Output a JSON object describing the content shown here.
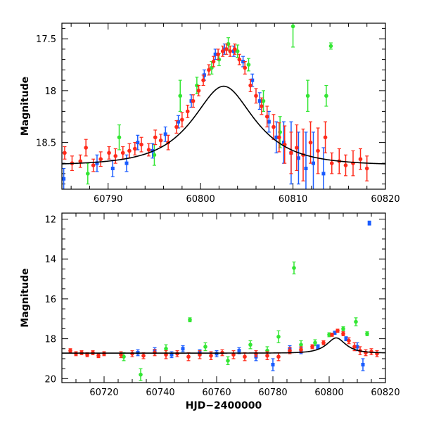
{
  "chart_data": [
    {
      "type": "scatter",
      "title": "",
      "xlabel": "",
      "ylabel": "Magnitude",
      "xlim": [
        60785,
        60820
      ],
      "ylim": [
        18.95,
        17.35
      ],
      "y_inverted": true,
      "xticks": [
        60790,
        60800,
        60810,
        60820
      ],
      "yticks": [
        17.5,
        18,
        18.5
      ],
      "ytick_labels": [
        "17.5",
        "18",
        "18.5"
      ],
      "grid": false,
      "legend": "none",
      "series": [
        {
          "color": "#ff2a1a",
          "marker": "circle-errorbar",
          "x": [
            60785.3,
            60786.1,
            60787.0,
            60787.6,
            60788.4,
            60789.2,
            60790.1,
            60790.8,
            60791.6,
            60792.3,
            60792.9,
            60793.6,
            60794.4,
            60795.1,
            60795.7,
            60796.5,
            60797.4,
            60798.0,
            60798.6,
            60799.2,
            60799.8,
            60800.3,
            60800.9,
            60801.4,
            60801.9,
            60802.4,
            60802.8,
            60803.2,
            60803.7,
            60804.2,
            60804.8,
            60805.4,
            60806.0,
            60806.6,
            60807.2,
            60807.9,
            60808.5,
            60809.1,
            60809.8,
            60810.4,
            60811.1,
            60811.9,
            60812.7,
            60813.5,
            60814.2,
            60815.0,
            60815.7,
            60816.5,
            60817.3,
            60818.0
          ],
          "y": [
            18.6,
            18.7,
            18.68,
            18.55,
            18.72,
            18.66,
            18.6,
            18.63,
            18.6,
            18.58,
            18.56,
            18.52,
            18.57,
            18.45,
            18.48,
            18.5,
            18.35,
            18.28,
            18.2,
            18.1,
            18.0,
            17.9,
            17.8,
            17.72,
            17.65,
            17.62,
            17.6,
            17.62,
            17.6,
            17.7,
            17.78,
            17.95,
            18.05,
            18.15,
            18.25,
            18.35,
            18.45,
            18.52,
            18.6,
            18.55,
            18.62,
            18.5,
            18.58,
            18.45,
            18.7,
            18.68,
            18.72,
            18.7,
            18.66,
            18.75
          ],
          "err": [
            0.06,
            0.07,
            0.06,
            0.08,
            0.06,
            0.07,
            0.06,
            0.07,
            0.06,
            0.07,
            0.06,
            0.07,
            0.06,
            0.07,
            0.06,
            0.07,
            0.06,
            0.07,
            0.06,
            0.06,
            0.05,
            0.05,
            0.05,
            0.05,
            0.05,
            0.05,
            0.05,
            0.05,
            0.05,
            0.05,
            0.06,
            0.06,
            0.07,
            0.08,
            0.1,
            0.12,
            0.14,
            0.18,
            0.2,
            0.22,
            0.25,
            0.2,
            0.22,
            0.15,
            0.1,
            0.12,
            0.1,
            0.12,
            0.1,
            0.12
          ]
        },
        {
          "color": "#1a5cff",
          "marker": "square-errorbar",
          "x": [
            60785.2,
            60788.8,
            60790.5,
            60792.0,
            60793.2,
            60794.8,
            60796.2,
            60797.6,
            60799.0,
            60800.4,
            60801.6,
            60802.6,
            60803.6,
            60804.6,
            60805.6,
            60806.4,
            60807.4,
            60808.2,
            60809.0,
            60809.8,
            60810.6,
            60811.4,
            60812.2,
            60813.3
          ],
          "y": [
            18.85,
            18.7,
            18.75,
            18.7,
            18.5,
            18.58,
            18.42,
            18.3,
            18.1,
            17.85,
            17.65,
            17.6,
            17.62,
            17.72,
            17.9,
            18.1,
            18.3,
            18.45,
            18.5,
            18.6,
            18.65,
            18.75,
            18.7,
            18.8
          ],
          "err": [
            0.1,
            0.08,
            0.08,
            0.08,
            0.07,
            0.07,
            0.07,
            0.06,
            0.06,
            0.05,
            0.05,
            0.05,
            0.05,
            0.05,
            0.06,
            0.08,
            0.1,
            0.15,
            0.2,
            0.3,
            0.25,
            0.35,
            0.3,
            0.25
          ]
        },
        {
          "color": "#33e633",
          "marker": "circle-errorbar",
          "x": [
            60787.8,
            60791.2,
            60795.0,
            60797.8,
            60799.6,
            60801.2,
            60802.0,
            60803.0,
            60804.0,
            60805.2,
            60806.8,
            60808.6,
            60810.0,
            60811.6,
            60813.6,
            60814.1
          ],
          "y": [
            18.8,
            18.45,
            18.62,
            18.05,
            17.95,
            17.78,
            17.7,
            17.55,
            17.62,
            17.75,
            18.1,
            18.4,
            17.38,
            18.05,
            18.05,
            17.57
          ],
          "err": [
            0.1,
            0.12,
            0.1,
            0.15,
            0.08,
            0.06,
            0.06,
            0.06,
            0.06,
            0.06,
            0.1,
            0.15,
            0.2,
            0.15,
            0.1,
            0.03
          ]
        }
      ],
      "model_curve": "single-lens microlensing fit (black line)"
    },
    {
      "type": "scatter",
      "title": "",
      "xlabel": "HJD−2400000",
      "ylabel": "Magnitude",
      "xlim": [
        60705,
        60820
      ],
      "ylim": [
        20.2,
        11.7
      ],
      "y_inverted": true,
      "xticks": [
        60720,
        60740,
        60760,
        60780,
        60800,
        60820
      ],
      "yticks": [
        12,
        14,
        16,
        18,
        20
      ],
      "grid": false,
      "legend": "none",
      "series": [
        {
          "color": "#ff2a1a",
          "marker": "circle-errorbar",
          "x": [
            60708,
            60710,
            60712,
            60714,
            60716,
            60718,
            60720,
            60726,
            60730,
            60734,
            60738,
            60742,
            60746,
            60750,
            60754,
            60758,
            60762,
            60766,
            60770,
            60774,
            60778,
            60782,
            60786,
            60790,
            60794,
            60798,
            60801,
            60803,
            60805,
            60807,
            60809,
            60811,
            60813,
            60815,
            60817
          ],
          "y": [
            18.6,
            18.75,
            18.7,
            18.8,
            18.7,
            18.85,
            18.75,
            18.8,
            18.75,
            18.85,
            18.7,
            18.8,
            18.75,
            18.9,
            18.8,
            18.85,
            18.7,
            18.8,
            18.9,
            18.75,
            18.85,
            18.9,
            18.6,
            18.55,
            18.4,
            18.2,
            17.8,
            17.6,
            17.75,
            18.1,
            18.4,
            18.6,
            18.7,
            18.65,
            18.75
          ],
          "err": [
            0.1,
            0.1,
            0.1,
            0.1,
            0.1,
            0.1,
            0.1,
            0.15,
            0.15,
            0.15,
            0.15,
            0.2,
            0.15,
            0.2,
            0.2,
            0.2,
            0.15,
            0.2,
            0.2,
            0.15,
            0.2,
            0.2,
            0.15,
            0.15,
            0.1,
            0.1,
            0.08,
            0.08,
            0.1,
            0.15,
            0.2,
            0.2,
            0.15,
            0.15,
            0.15
          ]
        },
        {
          "color": "#1a5cff",
          "marker": "square-errorbar",
          "x": [
            60732,
            60738,
            60744,
            60748,
            60754,
            60760,
            60768,
            60774,
            60780,
            60786,
            60790,
            60796,
            60802,
            60806,
            60810,
            60812,
            60814.3
          ],
          "y": [
            18.7,
            18.6,
            18.8,
            18.5,
            18.7,
            18.75,
            18.6,
            18.9,
            19.3,
            18.5,
            18.6,
            18.4,
            17.7,
            18.0,
            18.4,
            19.3,
            12.2
          ],
          "err": [
            0.15,
            0.15,
            0.15,
            0.15,
            0.15,
            0.15,
            0.15,
            0.2,
            0.3,
            0.15,
            0.15,
            0.1,
            0.08,
            0.1,
            0.2,
            0.3,
            0.1
          ]
        },
        {
          "color": "#33e633",
          "marker": "circle-errorbar",
          "x": [
            60727,
            60733,
            60742,
            60750.5,
            60756,
            60764,
            60772,
            60778,
            60782,
            60787.5,
            60790,
            60795,
            60800,
            60805,
            60809.5,
            60813.5
          ],
          "y": [
            18.9,
            19.8,
            18.5,
            17.05,
            18.4,
            19.1,
            18.3,
            18.6,
            17.9,
            14.45,
            18.3,
            18.2,
            17.8,
            17.5,
            17.15,
            17.75
          ],
          "err": [
            0.2,
            0.3,
            0.2,
            0.1,
            0.2,
            0.2,
            0.2,
            0.2,
            0.3,
            0.3,
            0.2,
            0.15,
            0.1,
            0.1,
            0.2,
            0.1
          ]
        }
      ],
      "model_curve": "single-lens microlensing fit (black line)"
    }
  ]
}
